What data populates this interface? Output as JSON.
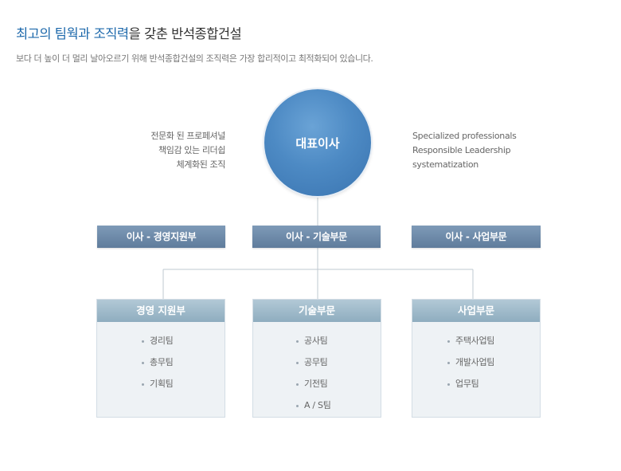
{
  "header": {
    "title_highlight": "최고의 팀웍과 조직력",
    "title_rest": "을 갖춘 반석종합건설",
    "subtitle": "보다 더 높이 더 멀리 날아오르기 위해 반석종합건설의 조직력은 가장 합리적이고 최적화되어 있습니다."
  },
  "ceo": {
    "label": "대표이사"
  },
  "motto_ko": [
    "전문화 된 프로페셔널",
    "책임감 있는 리더쉽",
    "체계화된 조직"
  ],
  "motto_en": [
    "Specialized professionals",
    "Responsible Leadership",
    "systematization"
  ],
  "executives": [
    {
      "label": "이사 - 경영지원부"
    },
    {
      "label": "이사 - 기술부문"
    },
    {
      "label": "이사 - 사업부문"
    }
  ],
  "departments": [
    {
      "title": "경영 지원부",
      "items": [
        "경리팀",
        "총무팀",
        "기획팀"
      ]
    },
    {
      "title": "기술부문",
      "items": [
        "공사팀",
        "공무팀",
        "기전팀",
        "A / S팀"
      ]
    },
    {
      "title": "사업부문",
      "items": [
        "주택사업팀",
        "개발사업팀",
        "업무팀"
      ]
    }
  ]
}
